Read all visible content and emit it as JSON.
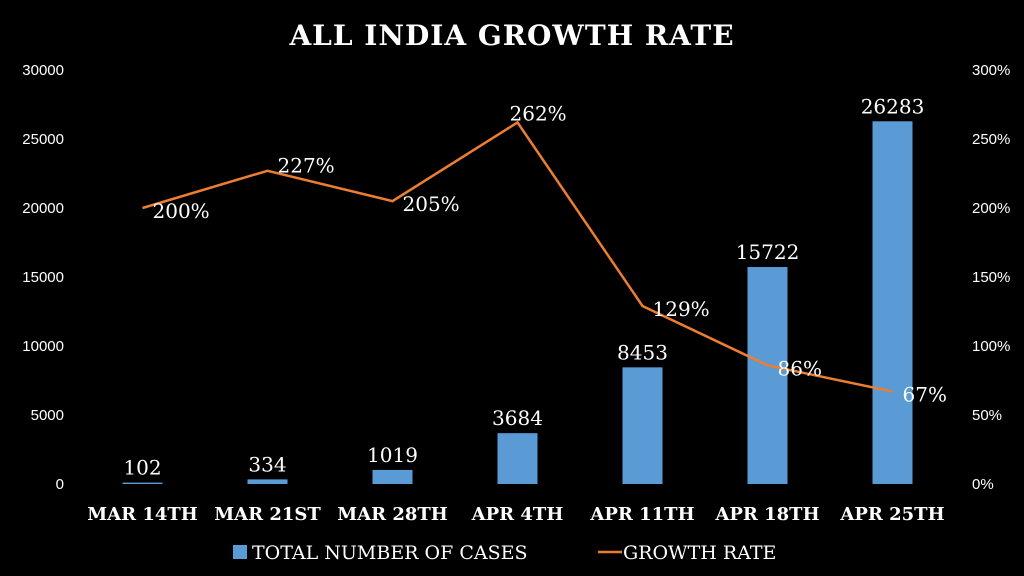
{
  "chart_data": {
    "type": "bar+line",
    "title": "ALL INDIA GROWTH RATE",
    "categories": [
      "MAR 14TH",
      "MAR 21ST",
      "MAR 28TH",
      "APR 4TH",
      "APR 11TH",
      "APR 18TH",
      "APR 25TH"
    ],
    "series": [
      {
        "name": "TOTAL NUMBER OF CASES",
        "type": "bar",
        "axis": "left",
        "color": "#5B9BD5",
        "values": [
          102,
          334,
          1019,
          3684,
          8453,
          15722,
          26283
        ],
        "labels": [
          "102",
          "334",
          "1019",
          "3684",
          "8453",
          "15722",
          "26283"
        ]
      },
      {
        "name": "GROWTH RATE",
        "type": "line",
        "axis": "right",
        "color": "#ED7D31",
        "values": [
          200,
          227,
          205,
          262,
          129,
          86,
          67
        ],
        "labels": [
          "200%",
          "227%",
          "205%",
          "262%",
          "129%",
          "86%",
          "67%"
        ]
      }
    ],
    "left_axis": {
      "ylim": [
        0,
        30000
      ],
      "ticks": [
        "0",
        "5000",
        "10000",
        "15000",
        "20000",
        "25000",
        "30000"
      ]
    },
    "right_axis": {
      "ylim": [
        0,
        300
      ],
      "ticks": [
        "0%",
        "50%",
        "100%",
        "150%",
        "200%",
        "250%",
        "300%"
      ]
    },
    "legend": "bottom",
    "grid": false
  }
}
